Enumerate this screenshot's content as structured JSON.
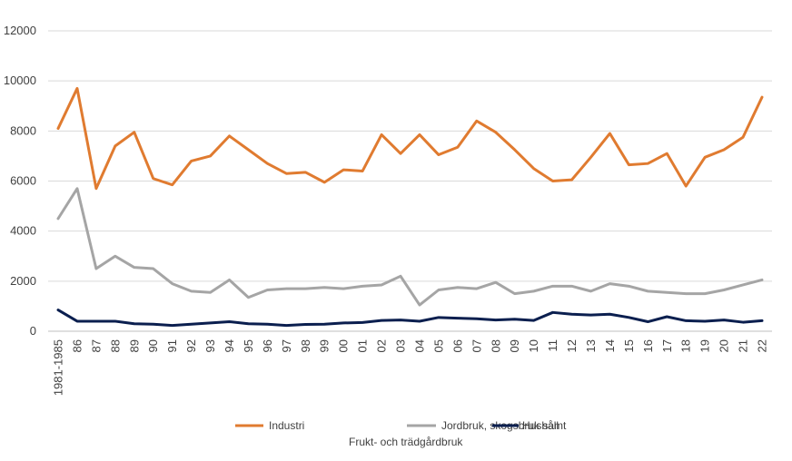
{
  "chart_data": {
    "type": "line",
    "title": "",
    "xlabel": "",
    "ylabel": "",
    "ylim": [
      0,
      12000
    ],
    "yticks": [
      0,
      2000,
      4000,
      6000,
      8000,
      10000,
      12000
    ],
    "grid": true,
    "legend_position": "bottom",
    "categories": [
      "1981-1985",
      "86",
      "87",
      "88",
      "89",
      "90",
      "91",
      "92",
      "93",
      "94",
      "95",
      "96",
      "97",
      "98",
      "99",
      "00",
      "01",
      "02",
      "03",
      "04",
      "05",
      "06",
      "07",
      "08",
      "09",
      "10",
      "11",
      "12",
      "13",
      "14",
      "15",
      "16",
      "17",
      "18",
      "19",
      "20",
      "21",
      "22"
    ],
    "series": [
      {
        "name": "Industri",
        "color": "#E07B30",
        "values": [
          8100,
          9700,
          5700,
          7400,
          7950,
          6100,
          5850,
          6800,
          7000,
          7800,
          7250,
          6700,
          6300,
          6350,
          5950,
          6450,
          6400,
          7850,
          7100,
          7850,
          7050,
          7350,
          8400,
          7950,
          7250,
          6500,
          6000,
          6050,
          6950,
          7900,
          6650,
          6700,
          7100,
          5800,
          6950,
          7250,
          7750,
          9350
        ]
      },
      {
        "name": "Jordbruk, skogsbruk samt Frukt- och trädgårdbruk",
        "legend_lines": [
          "Jordbruk, skogsbruk samt",
          "Frukt- och trädgårdbruk"
        ],
        "color": "#A5A5A5",
        "values": [
          4500,
          5700,
          2500,
          3000,
          2550,
          2500,
          1900,
          1600,
          1550,
          2050,
          1350,
          1650,
          1700,
          1700,
          1750,
          1700,
          1800,
          1850,
          2200,
          1050,
          1650,
          1750,
          1700,
          1950,
          1500,
          1600,
          1800,
          1800,
          1600,
          1900,
          1800,
          1600,
          1550,
          1500,
          1500,
          1650,
          1850,
          2050
        ]
      },
      {
        "name": "Hushåll",
        "color": "#0B1F4F",
        "values": [
          850,
          400,
          400,
          400,
          300,
          280,
          230,
          280,
          330,
          380,
          300,
          280,
          230,
          270,
          280,
          330,
          350,
          430,
          450,
          400,
          550,
          520,
          500,
          450,
          480,
          430,
          750,
          680,
          650,
          680,
          550,
          380,
          580,
          420,
          400,
          450,
          360,
          420
        ]
      }
    ]
  }
}
